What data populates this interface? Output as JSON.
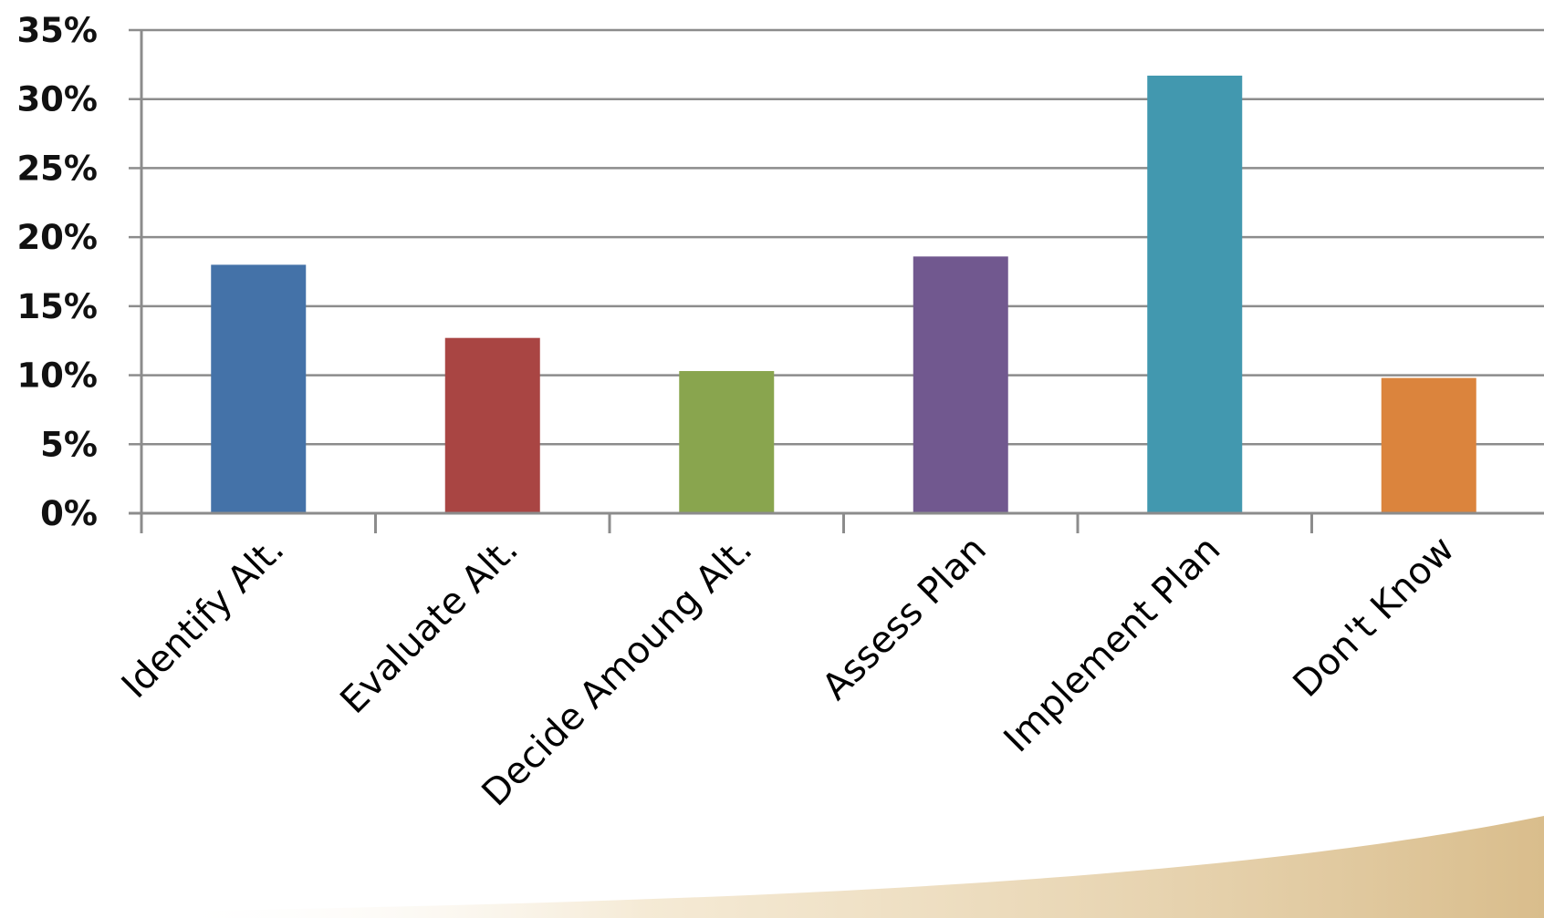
{
  "chart_data": {
    "type": "bar",
    "title": "",
    "xlabel": "",
    "ylabel": "",
    "categories": [
      "Identify Alt.",
      "Evaluate Alt.",
      "Decide Amoung Alt.",
      "Assess Plan",
      "Implement Plan",
      "Don't Know"
    ],
    "values": [
      18,
      12.7,
      10.3,
      18.6,
      31.7,
      9.8
    ],
    "value_unit": "%",
    "ylim": [
      0,
      35
    ],
    "yticks": [
      "0%",
      "5%",
      "10%",
      "15%",
      "20%",
      "25%",
      "30%",
      "35%"
    ],
    "grid": true,
    "legend": "none",
    "colors": [
      "#4472a8",
      "#a94543",
      "#89a54e",
      "#71588f",
      "#4298af",
      "#db843d"
    ]
  },
  "decoration": {
    "swoosh_color": "#d9bd8c"
  }
}
